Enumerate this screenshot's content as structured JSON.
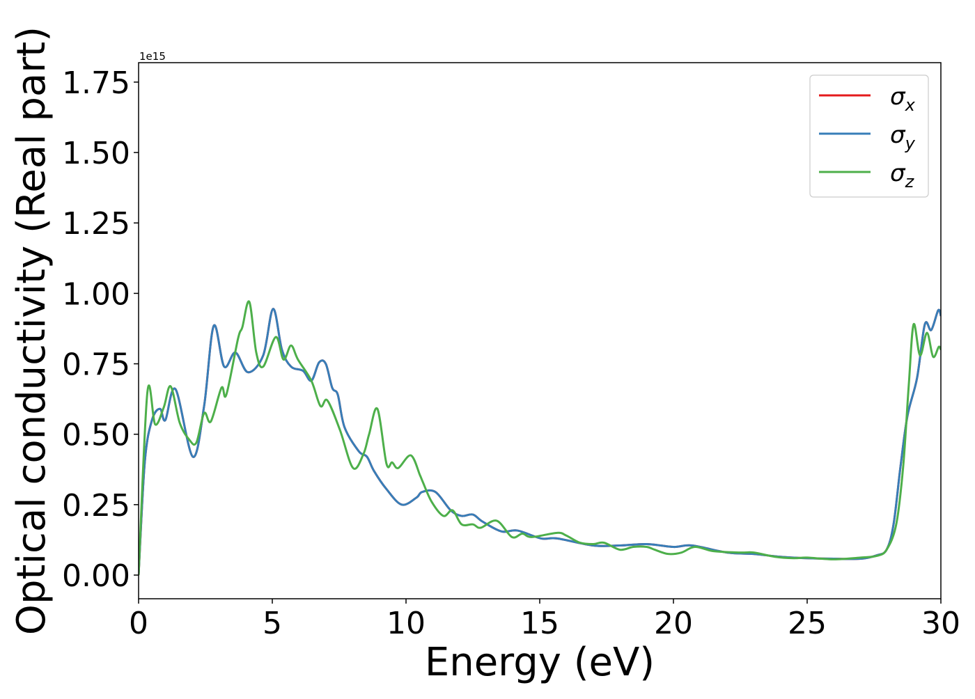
{
  "chart_data": {
    "type": "line",
    "title": "",
    "xlabel": "Energy (eV)",
    "ylabel": "Optical conductivity (Real part)",
    "y_offset_label": "1e15",
    "xlim": [
      0,
      30
    ],
    "ylim": [
      -0.084,
      1.819
    ],
    "xticks": [
      0,
      5,
      10,
      15,
      20,
      25,
      30
    ],
    "xtick_labels": [
      "0",
      "5",
      "10",
      "15",
      "20",
      "25",
      "30"
    ],
    "yticks": [
      0,
      0.25,
      0.5,
      0.75,
      1.0,
      1.25,
      1.5,
      1.75
    ],
    "ytick_labels": [
      "0.00",
      "0.25",
      "0.50",
      "0.75",
      "1.00",
      "1.25",
      "1.50",
      "1.75"
    ],
    "grid": false,
    "legend_position": "top-right",
    "series": [
      {
        "name": "σx",
        "base": "σ",
        "sub": "x",
        "color": "#e41a1c",
        "x": [
          0,
          0.23,
          0.5,
          0.8,
          1.0,
          1.38,
          2.03,
          2.45,
          2.81,
          3.2,
          3.62,
          4.09,
          4.66,
          5.03,
          5.36,
          5.7,
          6.15,
          6.46,
          6.75,
          7.0,
          7.24,
          7.45,
          7.7,
          8.23,
          8.54,
          8.8,
          9.27,
          9.84,
          10.39,
          10.6,
          11.1,
          11.67,
          12.08,
          12.5,
          12.86,
          13.57,
          14.17,
          15.05,
          15.65,
          17,
          18,
          19,
          20,
          20.7,
          22,
          23,
          24,
          25,
          26,
          27,
          27.6,
          27.97,
          28.23,
          28.49,
          28.75,
          29.11,
          29.4,
          29.64,
          29.9,
          30
        ],
        "y": [
          0,
          0.4,
          0.55,
          0.59,
          0.55,
          0.66,
          0.42,
          0.6,
          0.885,
          0.74,
          0.79,
          0.72,
          0.78,
          0.945,
          0.8,
          0.74,
          0.725,
          0.69,
          0.755,
          0.75,
          0.665,
          0.64,
          0.525,
          0.44,
          0.42,
          0.37,
          0.305,
          0.25,
          0.275,
          0.295,
          0.295,
          0.23,
          0.21,
          0.215,
          0.19,
          0.155,
          0.158,
          0.13,
          0.13,
          0.105,
          0.105,
          0.11,
          0.1,
          0.105,
          0.08,
          0.075,
          0.065,
          0.06,
          0.058,
          0.058,
          0.07,
          0.09,
          0.18,
          0.385,
          0.565,
          0.7,
          0.89,
          0.87,
          0.94,
          0.92
        ]
      },
      {
        "name": "σy",
        "base": "σ",
        "sub": "y",
        "color": "#377eb8",
        "x": [
          0,
          0.23,
          0.5,
          0.8,
          1.0,
          1.38,
          2.03,
          2.45,
          2.81,
          3.2,
          3.62,
          4.09,
          4.66,
          5.03,
          5.36,
          5.7,
          6.15,
          6.46,
          6.75,
          7.0,
          7.24,
          7.45,
          7.7,
          8.23,
          8.54,
          8.8,
          9.27,
          9.84,
          10.39,
          10.6,
          11.1,
          11.67,
          12.08,
          12.5,
          12.86,
          13.57,
          14.17,
          15.05,
          15.65,
          17,
          18,
          19,
          20,
          20.7,
          22,
          23,
          24,
          25,
          26,
          27,
          27.6,
          27.97,
          28.23,
          28.49,
          28.75,
          29.11,
          29.4,
          29.64,
          29.9,
          30
        ],
        "y": [
          0,
          0.4,
          0.55,
          0.59,
          0.55,
          0.66,
          0.42,
          0.6,
          0.885,
          0.74,
          0.79,
          0.72,
          0.78,
          0.945,
          0.8,
          0.74,
          0.725,
          0.69,
          0.755,
          0.75,
          0.665,
          0.64,
          0.525,
          0.44,
          0.42,
          0.37,
          0.305,
          0.25,
          0.275,
          0.295,
          0.295,
          0.23,
          0.21,
          0.215,
          0.19,
          0.155,
          0.158,
          0.13,
          0.13,
          0.105,
          0.105,
          0.11,
          0.1,
          0.105,
          0.08,
          0.075,
          0.065,
          0.06,
          0.058,
          0.058,
          0.07,
          0.09,
          0.18,
          0.385,
          0.565,
          0.7,
          0.89,
          0.87,
          0.94,
          0.92
        ]
      },
      {
        "name": "σz",
        "base": "σ",
        "sub": "z",
        "color": "#4daf4a",
        "x": [
          0,
          0.33,
          0.62,
          0.94,
          1.2,
          1.54,
          1.9,
          2.16,
          2.45,
          2.7,
          3.1,
          3.28,
          3.72,
          3.88,
          4.14,
          4.4,
          4.66,
          5.13,
          5.42,
          5.7,
          5.96,
          6.46,
          6.8,
          7.06,
          7.53,
          8.02,
          8.41,
          8.62,
          8.93,
          9.27,
          9.48,
          9.71,
          10.18,
          10.52,
          10.63,
          10.96,
          11.4,
          11.74,
          12.08,
          12.5,
          12.79,
          13.39,
          13.96,
          14.35,
          14.7,
          15.65,
          16.0,
          16.5,
          17,
          17.4,
          18,
          18.5,
          19,
          19.3,
          19.8,
          20.3,
          20.8,
          21.5,
          22.5,
          23,
          23.8,
          24.5,
          25,
          26,
          27,
          27.6,
          27.97,
          28.33,
          28.59,
          28.8,
          28.98,
          29.22,
          29.48,
          29.71,
          29.92,
          30
        ],
        "y": [
          0,
          0.65,
          0.535,
          0.595,
          0.67,
          0.54,
          0.48,
          0.47,
          0.575,
          0.545,
          0.665,
          0.64,
          0.84,
          0.88,
          0.97,
          0.79,
          0.74,
          0.845,
          0.765,
          0.815,
          0.765,
          0.69,
          0.6,
          0.62,
          0.515,
          0.38,
          0.43,
          0.5,
          0.59,
          0.395,
          0.4,
          0.38,
          0.425,
          0.355,
          0.33,
          0.26,
          0.21,
          0.23,
          0.18,
          0.18,
          0.168,
          0.193,
          0.135,
          0.147,
          0.135,
          0.15,
          0.14,
          0.115,
          0.11,
          0.115,
          0.09,
          0.1,
          0.1,
          0.09,
          0.075,
          0.08,
          0.1,
          0.085,
          0.08,
          0.08,
          0.065,
          0.06,
          0.062,
          0.056,
          0.062,
          0.068,
          0.09,
          0.18,
          0.385,
          0.675,
          0.89,
          0.78,
          0.86,
          0.775,
          0.81,
          0.8
        ]
      }
    ]
  }
}
